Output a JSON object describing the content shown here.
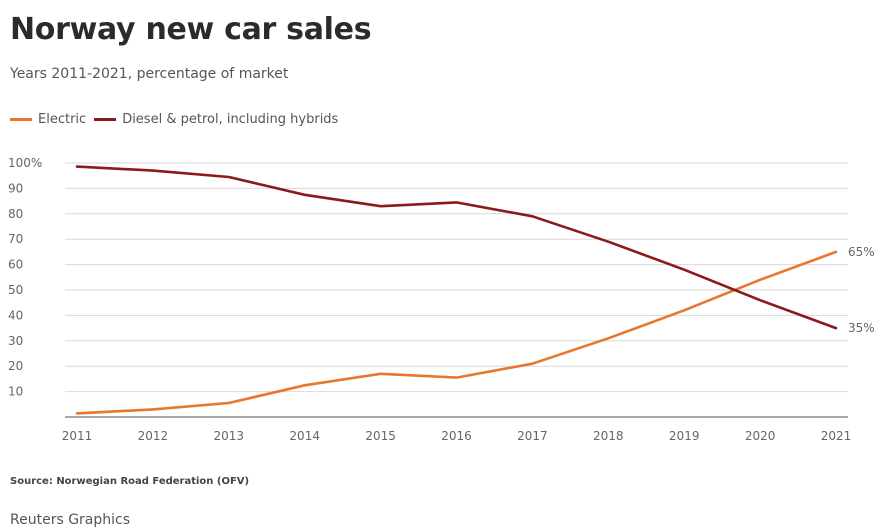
{
  "chart_data": {
    "type": "line",
    "title": "Norway new car sales",
    "subtitle": "Years 2011-2021, percentage of market",
    "x": [
      "2011",
      "2012",
      "2013",
      "2014",
      "2015",
      "2016",
      "2017",
      "2018",
      "2019",
      "2020",
      "2021"
    ],
    "y_ticks": [
      "100%",
      "90",
      "80",
      "70",
      "60",
      "50",
      "40",
      "30",
      "20",
      "10"
    ],
    "ylim": [
      0,
      100
    ],
    "grid": true,
    "legend_position": "top-left",
    "series": [
      {
        "name": "Electric",
        "color": "#e8772e",
        "values": [
          1.4,
          3,
          5.5,
          12.5,
          17,
          15.5,
          21,
          31,
          42,
          54,
          65
        ],
        "end_label": "65%"
      },
      {
        "name": "Diesel & petrol, including hybrids",
        "color": "#8b1a1a",
        "values": [
          98.6,
          97,
          94.5,
          87.5,
          83,
          84.5,
          79,
          69,
          58,
          46,
          35
        ],
        "end_label": "35%"
      }
    ],
    "source": "Source: Norwegian Road Federation (OFV)",
    "credit": "Reuters Graphics"
  }
}
